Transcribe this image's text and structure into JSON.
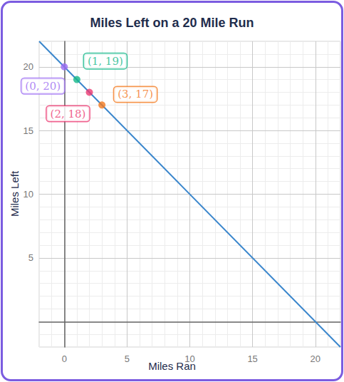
{
  "chart_data": {
    "type": "line",
    "title": "Miles Left on a 20 Mile Run",
    "xlabel": "Miles Ran",
    "ylabel": "Miles Left",
    "xlim": [
      -2,
      22
    ],
    "ylim": [
      -2,
      22
    ],
    "xticks": [
      0,
      5,
      10,
      15,
      20
    ],
    "yticks": [
      5,
      10,
      15,
      20
    ],
    "grid": true,
    "series": [
      {
        "type": "line",
        "color": "#3a86cc",
        "x": [
          -2,
          22
        ],
        "values": [
          22,
          -2
        ]
      },
      {
        "type": "scatter",
        "x": [
          0,
          1,
          2,
          3
        ],
        "values": [
          20,
          19,
          18,
          17
        ],
        "colors": [
          "#9b6cf2",
          "#14b88a",
          "#ec3a72",
          "#f47a1f"
        ],
        "data_labels": true,
        "value_labels": [
          "(0, 20)",
          "(1, 19)",
          "(2, 18)",
          "(3, 17)"
        ]
      }
    ]
  }
}
